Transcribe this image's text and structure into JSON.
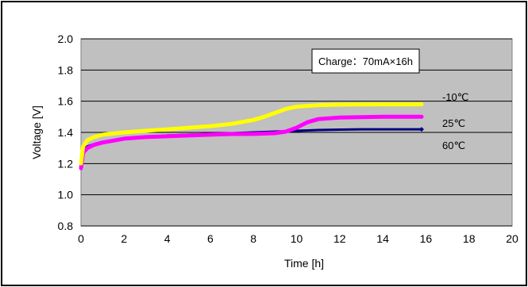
{
  "chart_data": {
    "type": "line",
    "title": "",
    "xlabel": "Time [h]",
    "ylabel": "Voltage [V]",
    "xlim": [
      0,
      20
    ],
    "ylim": [
      0.8,
      2.0
    ],
    "xticks": [
      "0",
      "2",
      "4",
      "6",
      "8",
      "10",
      "12",
      "14",
      "16",
      "18",
      "20"
    ],
    "yticks": [
      "0.8",
      "1.0",
      "1.2",
      "1.4",
      "1.6",
      "1.8",
      "2.0"
    ],
    "grid": true,
    "annotation": "Charge：70mA×16h",
    "series": [
      {
        "name": "-10℃",
        "color": "#ffff00",
        "x": [
          0,
          0.1,
          0.3,
          0.6,
          1,
          2,
          3,
          4,
          5,
          6,
          7,
          8,
          8.5,
          9,
          9.5,
          10,
          11,
          12,
          13,
          14,
          15,
          15.8
        ],
        "y": [
          1.2,
          1.31,
          1.35,
          1.37,
          1.385,
          1.4,
          1.41,
          1.42,
          1.43,
          1.44,
          1.455,
          1.48,
          1.5,
          1.525,
          1.55,
          1.565,
          1.575,
          1.578,
          1.579,
          1.58,
          1.58,
          1.58
        ]
      },
      {
        "name": "25℃",
        "color": "#ff00ff",
        "x": [
          0,
          0.1,
          0.3,
          0.6,
          1,
          2,
          3,
          4,
          5,
          6,
          7,
          8,
          9,
          9.5,
          10,
          10.5,
          11,
          12,
          13,
          14,
          15,
          15.8
        ],
        "y": [
          1.17,
          1.27,
          1.3,
          1.32,
          1.335,
          1.36,
          1.37,
          1.375,
          1.38,
          1.385,
          1.39,
          1.39,
          1.395,
          1.405,
          1.43,
          1.465,
          1.485,
          1.495,
          1.498,
          1.5,
          1.5,
          1.5
        ]
      },
      {
        "name": "60℃",
        "color": "#000080",
        "x": [
          0,
          0.1,
          0.3,
          0.6,
          1,
          2,
          3,
          4,
          5,
          6,
          7,
          8,
          9,
          10,
          11,
          12,
          13,
          14,
          15,
          15.8
        ],
        "y": [
          1.2,
          1.29,
          1.31,
          1.325,
          1.34,
          1.36,
          1.37,
          1.38,
          1.385,
          1.39,
          1.395,
          1.4,
          1.405,
          1.41,
          1.415,
          1.418,
          1.42,
          1.42,
          1.42,
          1.42
        ]
      }
    ]
  }
}
